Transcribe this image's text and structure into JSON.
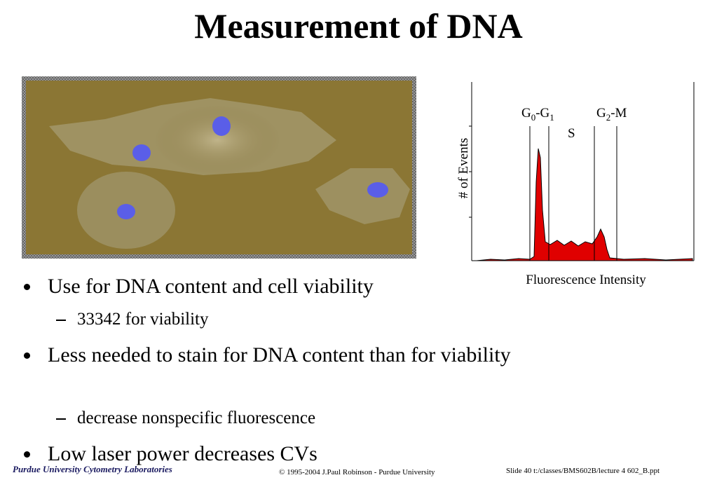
{
  "title": "Measurement of DNA",
  "figure": {
    "y_label": "# of Events",
    "x_label": "Fluorescence Intensity",
    "gates": {
      "g0g1": [
        "G",
        "0",
        "-G",
        "1"
      ],
      "s": "S",
      "g2m": [
        "G",
        "2",
        "-M"
      ]
    }
  },
  "bullets": [
    {
      "text": "Use for DNA content and cell viability",
      "sub": [
        "33342 for viability"
      ]
    },
    {
      "text": "Less needed to stain for DNA content than for viability",
      "sub": [
        "decrease nonspecific fluorescence"
      ]
    },
    {
      "text": "Low laser power decreases CVs"
    }
  ],
  "footer": {
    "left": "Purdue University Cytometry Laboratories",
    "center": "© 1995-2004 J.Paul Robinson - Purdue University",
    "right": "Slide 40  t:/classes/BMS602B/lecture 4 602_B.ppt"
  }
}
